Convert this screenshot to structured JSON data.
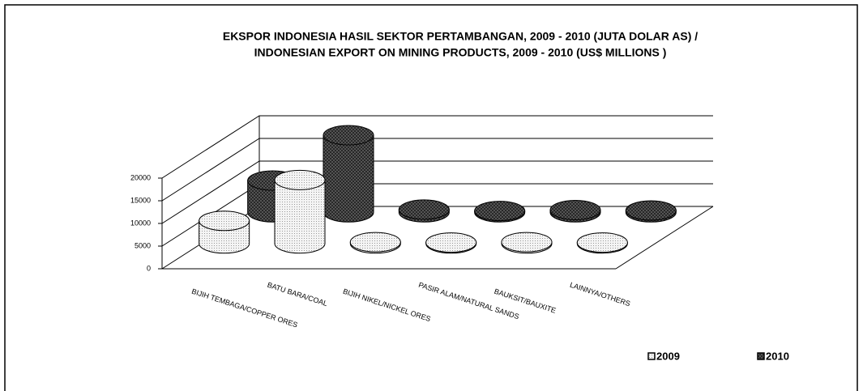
{
  "chart_data": {
    "type": "bar3d",
    "title": [
      "EKSPOR INDONESIA HASIL SEKTOR PERTAMBANGAN, 2009 - 2010 (JUTA DOLAR AS) /",
      "INDONESIAN EXPORT ON MINING PRODUCTS, 2009 - 2010 (US$ MILLIONS )"
    ],
    "categories": [
      "BIJIH TEMBAGA/COPPER ORES",
      "BATU BARA/COAL",
      "BIJIH NIKEL/NICKEL ORES",
      "PASIR ALAM/NATURAL SANDS",
      "BAUKSIT/BAUXITE",
      "LAINNYA/OTHERS"
    ],
    "series": [
      {
        "name": "2009",
        "color": "#f4f4f4",
        "values": [
          5000,
          14000,
          300,
          200,
          300,
          200
        ]
      },
      {
        "name": "2010",
        "color": "#555555",
        "values": [
          7000,
          17000,
          600,
          300,
          500,
          400
        ]
      }
    ],
    "ylim": [
      0,
      20000
    ],
    "yticks": [
      0,
      5000,
      10000,
      15000,
      20000
    ],
    "grid": true,
    "legend": "bottom-right"
  }
}
